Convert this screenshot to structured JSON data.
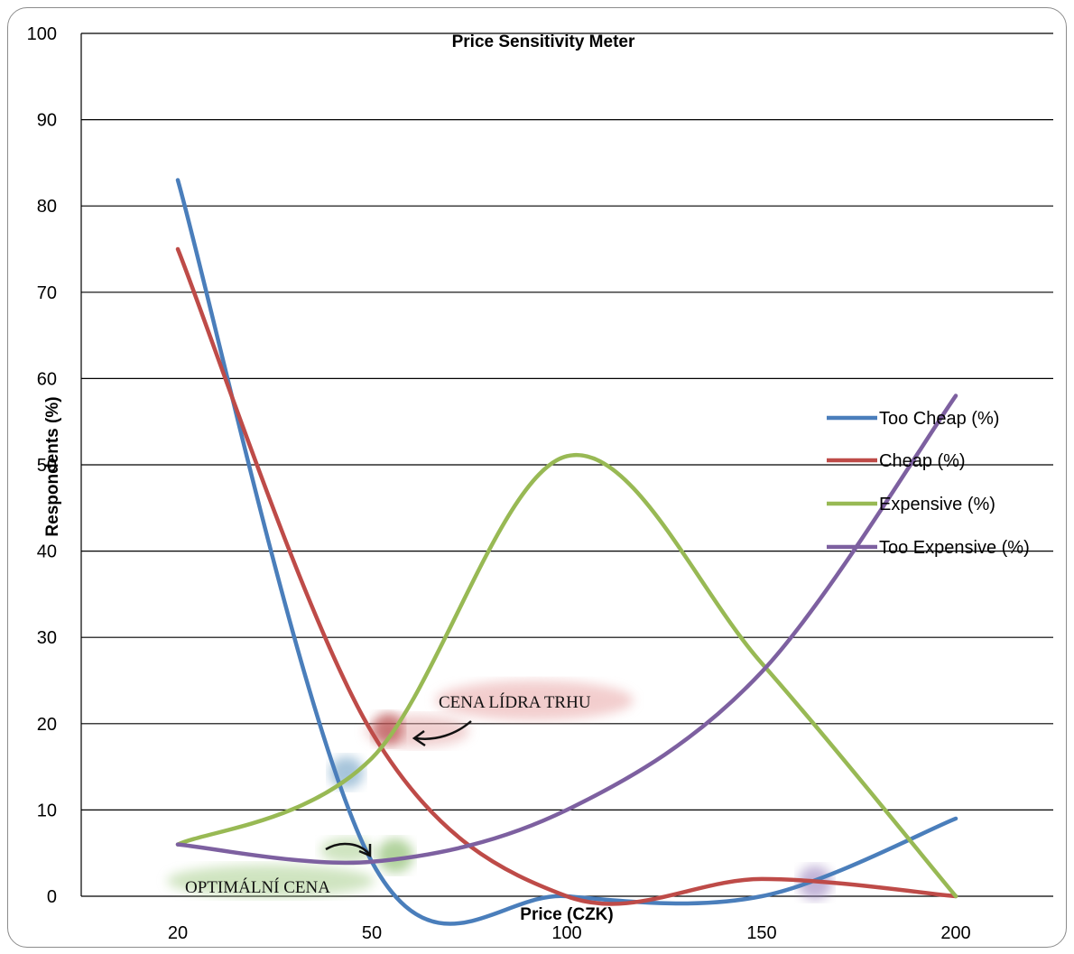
{
  "chart_data": {
    "type": "line",
    "title": "Price Sensitivity Meter",
    "xlabel": "Price (CZK)",
    "ylabel": "Respondents (%)",
    "x_ticks": [
      "20",
      "50",
      "100",
      "150",
      "200"
    ],
    "y_ticks": [
      "0",
      "10",
      "20",
      "30",
      "40",
      "50",
      "60",
      "70",
      "80",
      "90",
      "100"
    ],
    "ylim": [
      0,
      100
    ],
    "x_scale": "categorical-uniform",
    "grid": "horizontal",
    "legend_position": "right",
    "series": [
      {
        "name": "Too Cheap (%)",
        "color": "#4a7ebb",
        "x": [
          20,
          50,
          100,
          150,
          200
        ],
        "y": [
          83,
          4,
          0,
          0,
          9
        ]
      },
      {
        "name": "Cheap (%)",
        "color": "#be4b48",
        "x": [
          20,
          50,
          100,
          150,
          200
        ],
        "y": [
          75,
          19,
          0,
          2,
          0
        ]
      },
      {
        "name": "Expensive (%)",
        "color": "#98b954",
        "x": [
          20,
          50,
          100,
          150,
          200
        ],
        "y": [
          6,
          16,
          51,
          27,
          0
        ]
      },
      {
        "name": "Too Expensive (%)",
        "color": "#7d60a0",
        "x": [
          20,
          50,
          100,
          150,
          200
        ],
        "y": [
          6,
          4,
          10,
          26,
          58
        ]
      }
    ],
    "annotations": {
      "market_leader_label": "CENA LÍDRA TRHU",
      "optimal_label": "OPTIMÁLNÍ CENA"
    }
  }
}
